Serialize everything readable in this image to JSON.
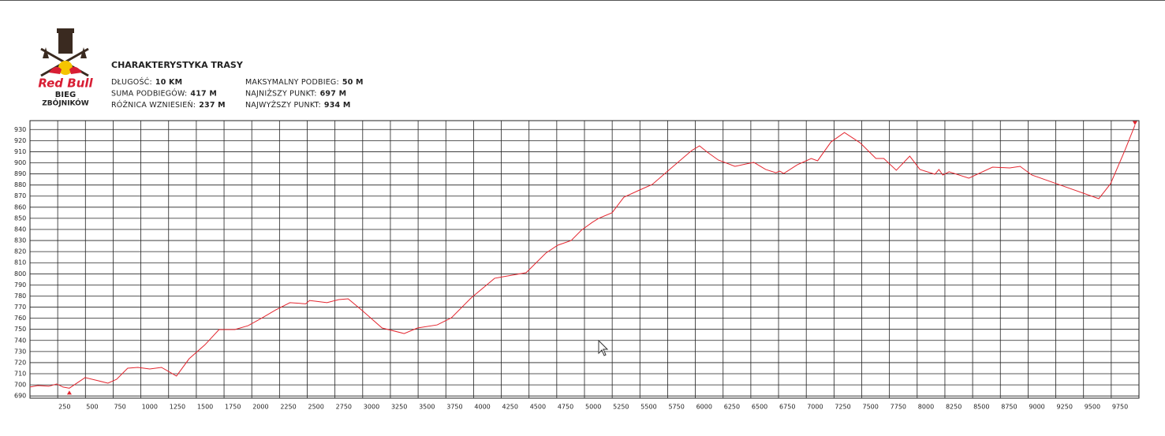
{
  "logo": {
    "brand": "Red Bull",
    "line1": "BIEG",
    "line2": "ZBÓJNIKÓW"
  },
  "header": {
    "title": "CHARAKTERYSTYKA TRASY",
    "stats_left": [
      {
        "label": "DŁUGOŚĆ:",
        "value": "10 KM"
      },
      {
        "label": "SUMA PODBIEGÓW:",
        "value": "417 M"
      },
      {
        "label": "RÓŻNICA WZNIESIEŃ:",
        "value": "237 M"
      }
    ],
    "stats_right": [
      {
        "label": "MAKSYMALNY PODBIEG:",
        "value": "50 M"
      },
      {
        "label": "NAJNIŻSZY PUNKT:",
        "value": "697 M"
      },
      {
        "label": "NAJWYŻSZY PUNKT:",
        "value": "934 M"
      }
    ]
  },
  "chart_data": {
    "type": "line",
    "color": "#e3262f",
    "grid": true,
    "x": [
      0,
      71,
      170,
      241,
      298,
      355,
      497,
      618,
      703,
      781,
      881,
      973,
      1080,
      1186,
      1321,
      1435,
      1577,
      1705,
      1847,
      1967,
      2095,
      2216,
      2344,
      2486,
      2521,
      2678,
      2784,
      2869,
      2997,
      3175,
      3374,
      3494,
      3672,
      3800,
      3977,
      4190,
      4474,
      4652,
      4759,
      4880,
      4972,
      5071,
      5128,
      5249,
      5355,
      5497,
      5611,
      5767,
      5966,
      6037,
      6108,
      6207,
      6357,
      6527,
      6634,
      6726,
      6761,
      6797,
      6918,
      7045,
      7102,
      7223,
      7344,
      7486,
      7628,
      7699,
      7812,
      7933,
      8025,
      8160,
      8196,
      8231,
      8288,
      8466,
      8679,
      8835,
      8928,
      9034,
      9318,
      9638,
      9744,
      9872,
      9964
    ],
    "values": [
      698,
      699.4,
      698.7,
      700.8,
      698,
      697,
      706.5,
      703.6,
      701.5,
      705,
      715,
      715.7,
      714.3,
      715.7,
      707.9,
      723.5,
      736,
      749.8,
      749.8,
      753.3,
      760.4,
      767.5,
      774,
      773,
      776,
      774,
      776.8,
      777.5,
      766.8,
      751.2,
      746.2,
      751.2,
      754,
      760.4,
      778.2,
      796,
      801,
      818.7,
      825.8,
      830,
      839.3,
      846.4,
      850,
      855,
      869,
      875.5,
      880.5,
      894,
      911,
      915.3,
      909.6,
      902.5,
      896.8,
      900.4,
      894,
      891.1,
      892.5,
      890.4,
      898.2,
      903.9,
      901.8,
      918.8,
      927.3,
      918,
      903.9,
      903.9,
      893.3,
      906,
      894,
      889.7,
      894,
      889,
      891.9,
      886.2,
      896.1,
      895.4,
      896.8,
      889,
      879,
      867.7,
      881.2,
      911,
      934
    ],
    "min_index": 5,
    "max_index": 82,
    "xlim": [
      0,
      10000
    ],
    "ylim": [
      688,
      938
    ],
    "xticks": [
      250,
      500,
      750,
      1000,
      1250,
      1500,
      1750,
      2000,
      2250,
      2500,
      2750,
      3000,
      3250,
      3500,
      3750,
      4000,
      4250,
      4500,
      4750,
      5000,
      5250,
      5500,
      5750,
      6000,
      6250,
      6500,
      6750,
      7000,
      7250,
      7500,
      7750,
      8000,
      8250,
      8500,
      8750,
      9000,
      9250,
      9500,
      9750
    ],
    "yticks": [
      690,
      700,
      710,
      720,
      730,
      740,
      750,
      760,
      770,
      780,
      790,
      800,
      810,
      820,
      830,
      840,
      850,
      860,
      870,
      880,
      890,
      900,
      910,
      920,
      930
    ]
  }
}
